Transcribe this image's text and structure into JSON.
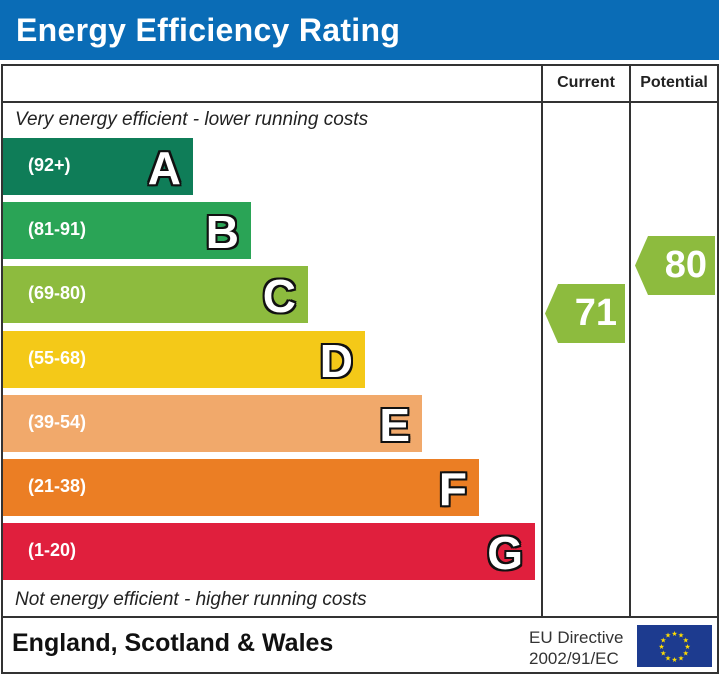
{
  "title": "Energy Efficiency Rating",
  "columns": {
    "current": "Current",
    "potential": "Potential"
  },
  "top_note": "Very energy efficient - lower running costs",
  "bottom_note": "Not energy efficient - higher running costs",
  "footer": {
    "region": "England, Scotland & Wales",
    "directive_line1": "EU Directive",
    "directive_line2": "2002/91/EC"
  },
  "chart_data": {
    "type": "bar",
    "title": "Energy Efficiency Rating",
    "bands": [
      {
        "letter": "A",
        "range": "(92+)",
        "color": "#0f7d58"
      },
      {
        "letter": "B",
        "range": "(81-91)",
        "color": "#2aa456"
      },
      {
        "letter": "C",
        "range": "(69-80)",
        "color": "#8dbb3e"
      },
      {
        "letter": "D",
        "range": "(55-68)",
        "color": "#f4c918"
      },
      {
        "letter": "E",
        "range": "(39-54)",
        "color": "#f1a96b"
      },
      {
        "letter": "F",
        "range": "(21-38)",
        "color": "#eb7e24"
      },
      {
        "letter": "G",
        "range": "(1-20)",
        "color": "#e01f3d"
      }
    ],
    "current": {
      "value": 71,
      "band": "C",
      "color": "#8dbb3e"
    },
    "potential": {
      "value": 80,
      "band": "C",
      "color": "#8dbb3e"
    }
  }
}
